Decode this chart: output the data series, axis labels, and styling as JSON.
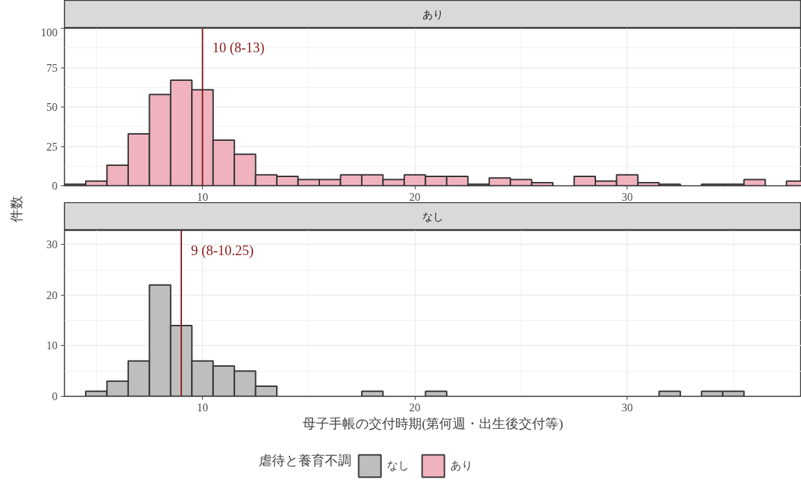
{
  "chart_data": [
    {
      "type": "histogram",
      "title": "あり",
      "ylabel": "件数",
      "bins": [
        3.5,
        4.5,
        5.5,
        6.5,
        7.5,
        8.5,
        9.5,
        10.5,
        11.5,
        12.5,
        13.5,
        14.5,
        15.5,
        16.5,
        17.5,
        18.5,
        19.5,
        20.5,
        21.5,
        22.5,
        23.5,
        24.5,
        25.5,
        26.5,
        27.5,
        28.5,
        29.5,
        30.5,
        31.5,
        32.5,
        33.5,
        34.5,
        35.5,
        36.5,
        37.5,
        38.5
      ],
      "series": [
        {
          "name": "あり",
          "color": "#f0b3be",
          "values": [
            1,
            3,
            13,
            33,
            58,
            67,
            61,
            29,
            20,
            7,
            6,
            4,
            4,
            7,
            7,
            4,
            7,
            6,
            6,
            1,
            5,
            4,
            2,
            0,
            6,
            3,
            7,
            2,
            1,
            0,
            1,
            1,
            4,
            0,
            3
          ]
        }
      ],
      "ref_lines": [
        {
          "axis": "x",
          "value": 10,
          "label": "10 (8-13)",
          "color": "#8b1a1a"
        }
      ],
      "xlim": [
        3.5,
        38.2
      ],
      "ylim": [
        0,
        100
      ],
      "xticks": [
        10,
        20,
        30
      ],
      "yticks": [
        0,
        25,
        50,
        75,
        100
      ],
      "grid": true
    },
    {
      "type": "histogram",
      "title": "なし",
      "xlabel": "母子手帳の交付時期(第何週・出生後交付等)",
      "legend_title": "虐待と養育不調",
      "legend": "bottom",
      "bins": [
        3.5,
        4.5,
        5.5,
        6.5,
        7.5,
        8.5,
        9.5,
        10.5,
        11.5,
        12.5,
        13.5,
        14.5,
        15.5,
        16.5,
        17.5,
        18.5,
        19.5,
        20.5,
        21.5,
        22.5,
        23.5,
        24.5,
        25.5,
        26.5,
        27.5,
        28.5,
        29.5,
        30.5,
        31.5,
        32.5,
        33.5,
        34.5,
        35.5,
        36.5,
        37.5,
        38.5
      ],
      "series": [
        {
          "name": "なし",
          "color": "#bebebe",
          "values": [
            0,
            1,
            3,
            7,
            22,
            14,
            7,
            6,
            5,
            2,
            0,
            0,
            0,
            0,
            1,
            0,
            0,
            1,
            0,
            0,
            0,
            0,
            0,
            0,
            0,
            0,
            0,
            0,
            1,
            0,
            1,
            1,
            0,
            0,
            0
          ]
        }
      ],
      "ref_lines": [
        {
          "axis": "x",
          "value": 9,
          "label": "9 (8-10.25)",
          "color": "#8b1a1a"
        }
      ],
      "xlim": [
        3.5,
        38.2
      ],
      "ylim": [
        0,
        32.8
      ],
      "xticks": [
        10,
        20,
        30
      ],
      "yticks": [
        0,
        10,
        20,
        30
      ],
      "grid": true
    }
  ]
}
